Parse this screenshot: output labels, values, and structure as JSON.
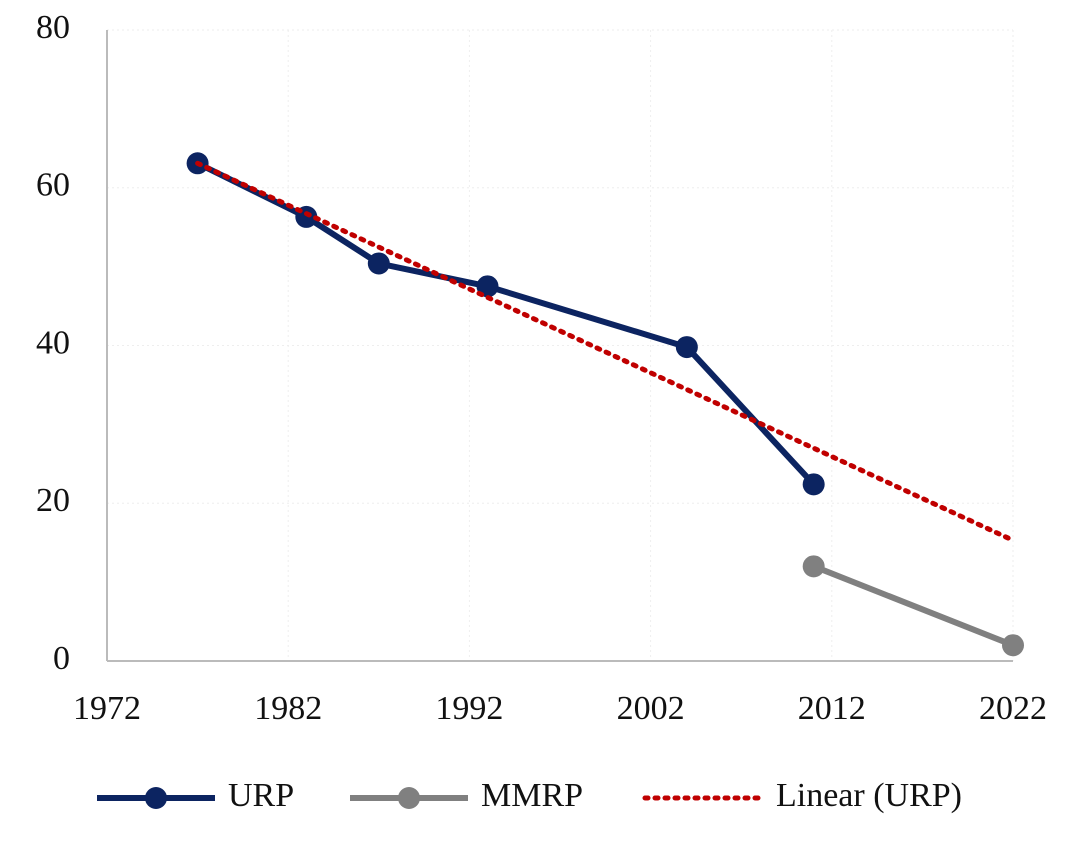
{
  "chart_data": {
    "type": "line",
    "series": [
      {
        "name": "URP",
        "color": "#0c2461",
        "style": "solid",
        "markers": true,
        "x": [
          1977,
          1983,
          1987,
          1993,
          2004,
          2011
        ],
        "values": [
          63.1,
          56.3,
          50.4,
          47.5,
          39.8,
          22.4
        ]
      },
      {
        "name": "MMRP",
        "color": "#808080",
        "style": "solid",
        "markers": true,
        "x": [
          2011,
          2022
        ],
        "values": [
          12.0,
          2.0
        ]
      },
      {
        "name": "Linear (URP)",
        "color": "#c00000",
        "style": "dotted",
        "markers": false,
        "x": [
          1977,
          2022
        ],
        "values": [
          63.1,
          15.3
        ]
      }
    ],
    "xlim": [
      1972,
      2022
    ],
    "xticks": [
      1972,
      1982,
      1992,
      2002,
      2012,
      2022
    ],
    "ylim": [
      0,
      80
    ],
    "yticks": [
      0,
      20,
      40,
      60,
      80
    ],
    "grid": true,
    "legend": "bottom"
  }
}
